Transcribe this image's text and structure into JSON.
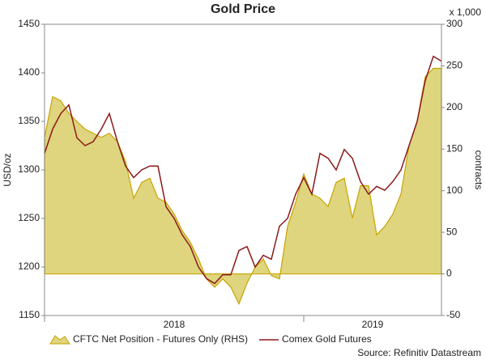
{
  "chart_data": {
    "type": "line",
    "title": "Gold Price",
    "y_label": "USD/oz",
    "y2_label": "contracts",
    "y2_unit": "x 1,000",
    "source": "Source: Refinitiv Datastream",
    "x": [
      2018,
      2018.03125,
      2018.0625,
      2018.09375,
      2018.125,
      2018.15625,
      2018.1875,
      2018.21875,
      2018.25,
      2018.28125,
      2018.3125,
      2018.34375,
      2018.375,
      2018.40625,
      2018.4375,
      2018.46875,
      2018.5,
      2018.53125,
      2018.5625,
      2018.59375,
      2018.625,
      2018.65625,
      2018.6875,
      2018.71875,
      2018.75,
      2018.78125,
      2018.8125,
      2018.84375,
      2018.875,
      2018.90625,
      2018.9375,
      2018.96875,
      2019,
      2019.03125,
      2019.0625,
      2019.09375,
      2019.125,
      2019.15625,
      2019.1875,
      2019.21875,
      2019.25,
      2019.28125,
      2019.3125,
      2019.34375,
      2019.375,
      2019.40625,
      2019.4375,
      2019.46875,
      2019.5,
      2019.53125
    ],
    "series": [
      {
        "name": "CFTC Net Position - Futures Only (RHS)",
        "kind": "area",
        "axis": "y2",
        "color": "#ded57e",
        "edge_color": "#c9a400",
        "values": [
          164,
          213,
          208,
          193,
          183,
          174,
          169,
          164,
          169,
          159,
          135,
          91,
          110,
          115,
          91,
          86,
          72,
          52,
          38,
          18,
          -6,
          -16,
          -6,
          -16,
          -36,
          -11,
          8,
          18,
          -2,
          -6,
          57,
          86,
          120,
          96,
          91,
          81,
          110,
          115,
          67,
          106,
          106,
          47,
          57,
          72,
          96,
          154,
          183,
          237,
          247,
          247
        ]
      },
      {
        "name": "Comex Gold Futures",
        "kind": "line",
        "axis": "y",
        "color": "#8b1a1a",
        "values": [
          1317,
          1342,
          1358,
          1367,
          1333,
          1325,
          1329,
          1342,
          1358,
          1329,
          1304,
          1292,
          1300,
          1304,
          1304,
          1262,
          1250,
          1233,
          1221,
          1200,
          1188,
          1183,
          1192,
          1192,
          1217,
          1221,
          1200,
          1212,
          1208,
          1242,
          1250,
          1275,
          1292,
          1275,
          1317,
          1312,
          1300,
          1321,
          1312,
          1288,
          1275,
          1283,
          1279,
          1288,
          1300,
          1325,
          1350,
          1392,
          1417,
          1412
        ]
      }
    ],
    "xlim": [
      2018,
      2019.53125
    ],
    "xticks": [
      {
        "value": 2018,
        "label": "2018"
      },
      {
        "value": 2019,
        "label": "2019"
      }
    ],
    "ylim": [
      1150,
      1450
    ],
    "yticks": [
      1150,
      1200,
      1250,
      1300,
      1350,
      1400,
      1450
    ],
    "y2lim": [
      -50,
      300
    ],
    "y2ticks": [
      -50,
      0,
      50,
      100,
      150,
      200,
      250,
      300
    ],
    "grid": false,
    "legend": "bottom"
  }
}
